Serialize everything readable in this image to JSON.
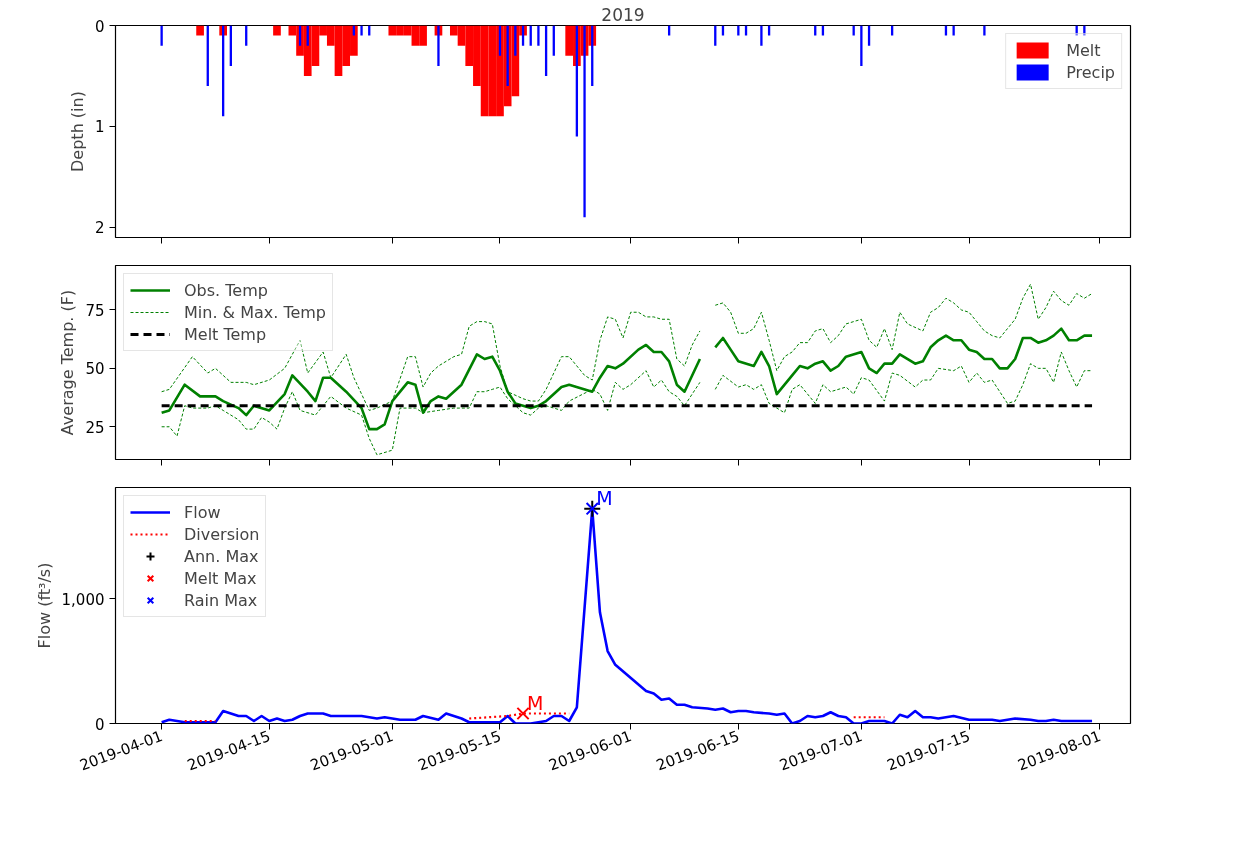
{
  "chart_data": [
    {
      "type": "bar",
      "title": "2019",
      "ylabel": "Depth (in)",
      "xlim": [
        "2019-03-26",
        "2019-08-05"
      ],
      "xticks": [
        "2019-04-01",
        "2019-04-15",
        "2019-05-01",
        "2019-05-15",
        "2019-06-01",
        "2019-06-15",
        "2019-07-01",
        "2019-07-15",
        "2019-08-01"
      ],
      "ylim": [
        2.1,
        0
      ],
      "yticks": [
        0,
        1,
        2
      ],
      "tick_labels": "y",
      "legend": "top right",
      "series": [
        {
          "name": "Melt",
          "color": "#ff0000",
          "x": [
            "2019-04-06",
            "2019-04-09",
            "2019-04-16",
            "2019-04-18",
            "2019-04-19",
            "2019-04-20",
            "2019-04-21",
            "2019-04-22",
            "2019-04-23",
            "2019-04-24",
            "2019-04-25",
            "2019-04-26",
            "2019-05-01",
            "2019-05-02",
            "2019-05-03",
            "2019-05-04",
            "2019-05-05",
            "2019-05-07",
            "2019-05-09",
            "2019-05-10",
            "2019-05-11",
            "2019-05-12",
            "2019-05-13",
            "2019-05-14",
            "2019-05-15",
            "2019-05-16",
            "2019-05-17",
            "2019-05-18",
            "2019-05-24",
            "2019-05-25",
            "2019-05-26",
            "2019-05-27"
          ],
          "values": [
            0.1,
            0.1,
            0.1,
            0.1,
            0.3,
            0.5,
            0.4,
            0.1,
            0.2,
            0.5,
            0.4,
            0.3,
            0.1,
            0.1,
            0.1,
            0.2,
            0.2,
            0.1,
            0.1,
            0.2,
            0.4,
            0.6,
            0.9,
            0.9,
            0.9,
            0.8,
            0.7,
            0.1,
            0.3,
            0.4,
            0.3,
            0.2
          ]
        },
        {
          "name": "Precip",
          "color": "#0000ff",
          "x": [
            "2019-04-01",
            "2019-04-07",
            "2019-04-09",
            "2019-04-10",
            "2019-04-12",
            "2019-04-19",
            "2019-04-20",
            "2019-04-26",
            "2019-04-27",
            "2019-04-28",
            "2019-05-07",
            "2019-05-15",
            "2019-05-16",
            "2019-05-17",
            "2019-05-18",
            "2019-05-19",
            "2019-05-20",
            "2019-05-21",
            "2019-05-22",
            "2019-05-25",
            "2019-05-26",
            "2019-05-27",
            "2019-06-06",
            "2019-06-12",
            "2019-06-13",
            "2019-06-15",
            "2019-06-16",
            "2019-06-18",
            "2019-06-19",
            "2019-06-25",
            "2019-06-26",
            "2019-06-30",
            "2019-07-01",
            "2019-07-02",
            "2019-07-05",
            "2019-07-12",
            "2019-07-13",
            "2019-07-17",
            "2019-07-29",
            "2019-07-30"
          ],
          "values": [
            0.2,
            0.6,
            0.9,
            0.4,
            0.2,
            0.2,
            0.2,
            0.1,
            0.1,
            0.1,
            0.4,
            0.3,
            0.6,
            0.3,
            0.2,
            0.2,
            0.2,
            0.5,
            0.3,
            1.1,
            1.9,
            0.6,
            0.1,
            0.2,
            0.1,
            0.1,
            0.1,
            0.2,
            0.1,
            0.1,
            0.1,
            0.1,
            0.4,
            0.2,
            0.1,
            0.1,
            0.1,
            0.1,
            0.1,
            0.1
          ]
        }
      ]
    },
    {
      "type": "line",
      "ylabel": "Average Temp. (F)",
      "xlim": [
        "2019-03-26",
        "2019-08-05"
      ],
      "xticks": [
        "2019-04-01",
        "2019-04-15",
        "2019-05-01",
        "2019-05-15",
        "2019-06-01",
        "2019-06-15",
        "2019-07-01",
        "2019-07-15",
        "2019-08-01"
      ],
      "ylim": [
        11,
        94
      ],
      "yticks": [
        25,
        50,
        75
      ],
      "tick_labels": "y",
      "legend": "top left",
      "series": [
        {
          "name": "Obs. Temp",
          "color": "#008000",
          "line_style": "solid",
          "x": [
            "2019-04-01",
            "2019-04-02",
            "2019-04-04",
            "2019-04-06",
            "2019-04-08",
            "2019-04-09",
            "2019-04-11",
            "2019-04-12",
            "2019-04-13",
            "2019-04-15",
            "2019-04-17",
            "2019-04-18",
            "2019-04-20",
            "2019-04-21",
            "2019-04-22",
            "2019-04-23",
            "2019-04-25",
            "2019-04-27",
            "2019-04-28",
            "2019-04-29",
            "2019-04-30",
            "2019-05-01",
            "2019-05-03",
            "2019-05-04",
            "2019-05-05",
            "2019-05-06",
            "2019-05-07",
            "2019-05-08",
            "2019-05-10",
            "2019-05-12",
            "2019-05-13",
            "2019-05-14",
            "2019-05-15",
            "2019-05-16",
            "2019-05-17",
            "2019-05-19",
            "2019-05-20",
            "2019-05-21",
            "2019-05-23",
            "2019-05-24",
            "2019-05-27",
            "2019-05-28",
            "2019-05-29",
            "2019-05-30",
            "2019-05-31",
            "2019-06-02",
            "2019-06-03",
            "2019-06-04",
            "2019-06-05",
            "2019-06-06",
            "2019-06-07",
            "2019-06-08",
            "2019-06-10",
            "2019-06-11",
            "2019-06-12",
            "2019-06-13",
            "2019-06-14",
            "2019-06-15",
            "2019-06-17",
            "2019-06-18",
            "2019-06-19",
            "2019-06-20",
            "2019-06-22",
            "2019-06-23",
            "2019-06-24",
            "2019-06-25",
            "2019-06-26",
            "2019-06-27",
            "2019-06-28",
            "2019-06-29",
            "2019-07-01",
            "2019-07-02",
            "2019-07-03",
            "2019-07-04",
            "2019-07-05",
            "2019-07-06",
            "2019-07-08",
            "2019-07-09",
            "2019-07-10",
            "2019-07-11",
            "2019-07-12",
            "2019-07-13",
            "2019-07-14",
            "2019-07-15",
            "2019-07-16",
            "2019-07-17",
            "2019-07-18",
            "2019-07-19",
            "2019-07-20",
            "2019-07-21",
            "2019-07-22",
            "2019-07-23",
            "2019-07-24",
            "2019-07-25",
            "2019-07-26",
            "2019-07-27",
            "2019-07-28",
            "2019-07-29",
            "2019-07-30",
            "2019-07-31"
          ],
          "values": [
            31,
            32,
            43,
            38,
            38,
            36,
            33,
            30,
            34,
            32,
            39,
            47,
            40,
            36,
            46,
            46,
            40,
            33,
            24,
            24,
            26,
            36,
            44,
            43,
            31,
            36,
            38,
            37,
            43,
            56,
            54,
            55,
            49,
            40,
            35,
            33,
            34,
            36,
            42,
            43,
            40,
            46,
            51,
            50,
            52,
            58,
            60,
            57,
            57,
            53,
            43,
            40,
            54,
            null,
            59,
            63,
            58,
            53,
            51,
            57,
            51,
            39,
            47,
            51,
            50,
            52,
            53,
            49,
            51,
            55,
            57,
            50,
            48,
            52,
            52,
            56,
            52,
            53,
            59,
            62,
            64,
            62,
            62,
            58,
            57,
            54,
            54,
            50,
            50,
            54,
            63,
            63,
            61,
            62,
            64,
            67,
            62,
            62,
            64,
            64
          ]
        },
        {
          "name": "Min. & Max. Temp",
          "color": "#008000",
          "line_style": "dashed",
          "x": [
            "2019-04-01",
            "2019-04-02",
            "2019-04-03",
            "2019-04-04",
            "2019-04-05",
            "2019-04-07",
            "2019-04-08",
            "2019-04-09",
            "2019-04-11",
            "2019-04-12",
            "2019-04-13",
            "2019-04-14",
            "2019-04-15",
            "2019-04-16",
            "2019-04-17",
            "2019-04-18",
            "2019-04-19",
            "2019-04-21",
            "2019-04-23",
            "2019-04-25",
            "2019-04-27",
            "2019-04-28",
            "2019-04-29",
            "2019-05-01",
            "2019-05-02",
            "2019-05-04",
            "2019-05-05",
            "2019-05-07",
            "2019-05-09",
            "2019-05-11",
            "2019-05-12",
            "2019-05-13",
            "2019-05-14",
            "2019-05-15",
            "2019-05-16",
            "2019-05-18",
            "2019-05-19",
            "2019-05-20",
            "2019-05-21",
            "2019-05-23",
            "2019-05-24",
            "2019-05-27",
            "2019-05-28",
            "2019-05-29",
            "2019-05-30",
            "2019-05-31",
            "2019-06-01",
            "2019-06-03",
            "2019-06-04",
            "2019-06-05",
            "2019-06-06",
            "2019-06-07",
            "2019-06-08",
            "2019-06-09",
            "2019-06-10",
            "2019-06-11",
            "2019-06-12",
            "2019-06-13",
            "2019-06-15",
            "2019-06-16",
            "2019-06-17",
            "2019-06-18",
            "2019-06-19",
            "2019-06-21",
            "2019-06-22",
            "2019-06-23",
            "2019-06-25",
            "2019-06-26",
            "2019-06-27",
            "2019-06-29",
            "2019-06-30",
            "2019-07-01",
            "2019-07-02",
            "2019-07-04",
            "2019-07-05",
            "2019-07-06",
            "2019-07-08",
            "2019-07-09",
            "2019-07-10",
            "2019-07-11",
            "2019-07-13",
            "2019-07-14",
            "2019-07-15",
            "2019-07-16",
            "2019-07-17",
            "2019-07-18",
            "2019-07-20",
            "2019-07-21",
            "2019-07-22",
            "2019-07-23",
            "2019-07-24",
            "2019-07-25",
            "2019-07-26",
            "2019-07-27",
            "2019-07-28",
            "2019-07-29",
            "2019-07-30",
            "2019-07-31"
          ],
          "values": [
            25,
            25,
            21,
            34,
            33,
            33,
            34,
            32,
            28,
            24,
            24,
            29,
            27,
            24,
            33,
            40,
            32,
            30,
            38,
            33,
            30,
            20,
            13,
            15,
            33,
            33,
            31,
            32,
            33,
            33,
            40,
            40,
            41,
            42,
            37,
            31,
            30,
            33,
            34,
            32,
            36,
            41,
            39,
            32,
            44,
            41,
            43,
            49,
            42,
            45,
            40,
            38,
            34,
            39,
            44,
            null,
            41,
            47,
            42,
            43,
            41,
            43,
            35,
            31,
            41,
            43,
            35,
            43,
            40,
            42,
            39,
            46,
            45,
            36,
            48,
            47,
            42,
            45,
            45,
            50,
            49,
            51,
            44,
            48,
            44,
            45,
            35,
            36,
            43,
            52,
            50,
            50,
            44,
            57,
            49,
            42,
            49,
            49
          ]
        },
        {
          "color": "#008000",
          "line_style": "dashed",
          "x": [
            "2019-04-01",
            "2019-04-02",
            "2019-04-05",
            "2019-04-07",
            "2019-04-08",
            "2019-04-10",
            "2019-04-12",
            "2019-04-13",
            "2019-04-15",
            "2019-04-17",
            "2019-04-19",
            "2019-04-20",
            "2019-04-22",
            "2019-04-23",
            "2019-04-25",
            "2019-04-26",
            "2019-04-28",
            "2019-04-29",
            "2019-05-01",
            "2019-05-03",
            "2019-05-04",
            "2019-05-05",
            "2019-05-06",
            "2019-05-07",
            "2019-05-09",
            "2019-05-10",
            "2019-05-11",
            "2019-05-12",
            "2019-05-13",
            "2019-05-14",
            "2019-05-15",
            "2019-05-16",
            "2019-05-18",
            "2019-05-19",
            "2019-05-20",
            "2019-05-21",
            "2019-05-23",
            "2019-05-24",
            "2019-05-26",
            "2019-05-27",
            "2019-05-28",
            "2019-05-29",
            "2019-05-30",
            "2019-05-31",
            "2019-06-01",
            "2019-06-02",
            "2019-06-03",
            "2019-06-04",
            "2019-06-05",
            "2019-06-06",
            "2019-06-07",
            "2019-06-08",
            "2019-06-09",
            "2019-06-10",
            "2019-06-11",
            "2019-06-12",
            "2019-06-13",
            "2019-06-14",
            "2019-06-15",
            "2019-06-16",
            "2019-06-17",
            "2019-06-18",
            "2019-06-19",
            "2019-06-20",
            "2019-06-21",
            "2019-06-22",
            "2019-06-23",
            "2019-06-24",
            "2019-06-25",
            "2019-06-26",
            "2019-06-27",
            "2019-06-28",
            "2019-06-29",
            "2019-07-01",
            "2019-07-02",
            "2019-07-03",
            "2019-07-04",
            "2019-07-05",
            "2019-07-06",
            "2019-07-07",
            "2019-07-09",
            "2019-07-10",
            "2019-07-11",
            "2019-07-12",
            "2019-07-13",
            "2019-07-14",
            "2019-07-15",
            "2019-07-16",
            "2019-07-17",
            "2019-07-18",
            "2019-07-19",
            "2019-07-20",
            "2019-07-21",
            "2019-07-22",
            "2019-07-23",
            "2019-07-24",
            "2019-07-25",
            "2019-07-26",
            "2019-07-27",
            "2019-07-28",
            "2019-07-29",
            "2019-07-30",
            "2019-07-31"
          ],
          "values": [
            40,
            41,
            55,
            48,
            50,
            44,
            44,
            43,
            45,
            50,
            62,
            48,
            57,
            46,
            56,
            46,
            32,
            33,
            36,
            55,
            55,
            42,
            48,
            51,
            55,
            56,
            68,
            70,
            70,
            69,
            51,
            40,
            37,
            36,
            36,
            41,
            55,
            55,
            47,
            45,
            62,
            72,
            71,
            63,
            74,
            74,
            72,
            72,
            71,
            71,
            54,
            51,
            60,
            66,
            null,
            77,
            78,
            74,
            65,
            65,
            67,
            74,
            62,
            49,
            55,
            57,
            61,
            61,
            66,
            67,
            61,
            64,
            69,
            71,
            62,
            59,
            67,
            58,
            74,
            69,
            66,
            74,
            76,
            80,
            78,
            75,
            74,
            70,
            66,
            64,
            63,
            67,
            71,
            80,
            86,
            71,
            76,
            83,
            79,
            77,
            82,
            80,
            82
          ]
        }
      ],
      "ref_lines": [
        {
          "axis": "y",
          "value": 34,
          "label": "Melt Temp",
          "color": "#000000",
          "line_style": "dashed"
        }
      ]
    },
    {
      "type": "line",
      "ylabel": "Flow (ft³/s)",
      "xlim": [
        "2019-03-26",
        "2019-08-05"
      ],
      "xticks": [
        "2019-04-01",
        "2019-04-15",
        "2019-05-01",
        "2019-05-15",
        "2019-06-01",
        "2019-06-15",
        "2019-07-01",
        "2019-07-15",
        "2019-08-01"
      ],
      "ylim": [
        0,
        1890
      ],
      "yticks": [
        0,
        {
          "value": 1000,
          "label": "1,000"
        }
      ],
      "legend": "top left",
      "series": [
        {
          "name": "Flow",
          "color": "#0000ff",
          "line_style": "solid",
          "x": [
            "2019-04-01",
            "2019-04-02",
            "2019-04-03",
            "2019-04-04",
            "2019-04-08",
            "2019-04-09",
            "2019-04-10",
            "2019-04-11",
            "2019-04-12",
            "2019-04-13",
            "2019-04-14",
            "2019-04-15",
            "2019-04-16",
            "2019-04-17",
            "2019-04-18",
            "2019-04-19",
            "2019-04-20",
            "2019-04-22",
            "2019-04-23",
            "2019-04-25",
            "2019-04-27",
            "2019-04-29",
            "2019-04-30",
            "2019-05-02",
            "2019-05-04",
            "2019-05-05",
            "2019-05-07",
            "2019-05-08",
            "2019-05-10",
            "2019-05-11",
            "2019-05-15",
            "2019-05-16",
            "2019-05-17",
            "2019-05-19",
            "2019-05-21",
            "2019-05-22",
            "2019-05-23",
            "2019-05-24",
            "2019-05-25",
            "2019-05-27",
            "2019-05-28",
            "2019-05-29",
            "2019-05-30",
            "2019-06-03",
            "2019-06-04",
            "2019-06-05",
            "2019-06-06",
            "2019-06-07",
            "2019-06-08",
            "2019-06-09",
            "2019-06-11",
            "2019-06-12",
            "2019-06-13",
            "2019-06-14",
            "2019-06-15",
            "2019-06-16",
            "2019-06-17",
            "2019-06-19",
            "2019-06-20",
            "2019-06-21",
            "2019-06-22",
            "2019-06-23",
            "2019-06-24",
            "2019-06-25",
            "2019-06-26",
            "2019-06-27",
            "2019-06-28",
            "2019-06-29",
            "2019-06-30",
            "2019-07-01",
            "2019-07-02",
            "2019-07-03",
            "2019-07-04",
            "2019-07-05",
            "2019-07-06",
            "2019-07-07",
            "2019-07-08",
            "2019-07-09",
            "2019-07-10",
            "2019-07-11",
            "2019-07-13",
            "2019-07-15",
            "2019-07-16",
            "2019-07-18",
            "2019-07-19",
            "2019-07-21",
            "2019-07-23",
            "2019-07-24",
            "2019-07-25",
            "2019-07-26",
            "2019-07-27",
            "2019-07-28",
            "2019-07-29",
            "2019-07-30",
            "2019-07-31"
          ],
          "values": [
            10,
            30,
            20,
            10,
            10,
            100,
            80,
            60,
            60,
            20,
            60,
            20,
            40,
            20,
            30,
            60,
            80,
            80,
            60,
            60,
            60,
            40,
            50,
            30,
            30,
            60,
            30,
            80,
            40,
            10,
            10,
            60,
            0,
            0,
            20,
            60,
            60,
            20,
            130,
            1720,
            890,
            580,
            470,
            260,
            240,
            190,
            200,
            150,
            150,
            130,
            120,
            110,
            120,
            90,
            100,
            100,
            90,
            80,
            70,
            80,
            0,
            20,
            60,
            50,
            60,
            90,
            60,
            50,
            0,
            0,
            20,
            20,
            20,
            0,
            70,
            50,
            100,
            50,
            50,
            40,
            60,
            30,
            30,
            30,
            20,
            40,
            30,
            20,
            20,
            30,
            20,
            20,
            20,
            20,
            20
          ]
        },
        {
          "name": "Diversion",
          "color": "#ff0000",
          "line_style": "dotted",
          "x": [
            "2019-04-04",
            "2019-04-08",
            "2019-04-09",
            "2019-05-11",
            "2019-05-16",
            "2019-05-18",
            "2019-05-24",
            "2019-05-25",
            "2019-06-30",
            "2019-07-04"
          ],
          "values": [
            20,
            20,
            null,
            40,
            60,
            80,
            80,
            null,
            50,
            50
          ]
        },
        {
          "name": "Ann. Max",
          "type": "scatter",
          "marker": "cross",
          "color": "#000000",
          "x": [
            "2019-05-27"
          ],
          "values": [
            1720
          ]
        },
        {
          "name": "Melt Max",
          "type": "scatter",
          "marker": "x",
          "color": "#ff0000",
          "x": [
            "2019-05-18"
          ],
          "values": [
            80
          ]
        },
        {
          "name": "Rain Max",
          "type": "scatter",
          "marker": "x",
          "color": "#0000ff",
          "x": [
            "2019-05-27"
          ],
          "values": [
            1720
          ]
        }
      ],
      "annotations": [
        {
          "text": "M",
          "x": "2019-05-27",
          "y": 1720
        },
        {
          "text": "M",
          "x": "2019-05-18",
          "y": 80
        }
      ]
    }
  ]
}
